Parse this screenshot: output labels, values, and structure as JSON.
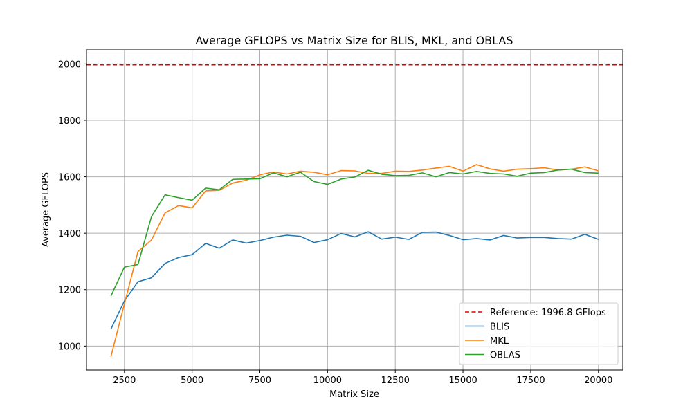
{
  "chart_data": {
    "type": "line",
    "title": "Average GFLOPS vs Matrix Size for BLIS, MKL, and OBLAS",
    "xlabel": "Matrix Size",
    "ylabel": "Average GFLOPS",
    "xlim": [
      1100,
      20900
    ],
    "ylim": [
      915,
      2050
    ],
    "xticks": [
      2500,
      5000,
      7500,
      10000,
      12500,
      15000,
      17500,
      20000
    ],
    "yticks": [
      1000,
      1200,
      1400,
      1600,
      1800,
      2000
    ],
    "grid": true,
    "legend_position": "lower-right",
    "reference": {
      "name": "Reference: 1996.8 GFlops",
      "value": 1996.8,
      "color": "#e00000",
      "style": "dashed"
    },
    "x": [
      2000,
      2500,
      3000,
      3500,
      4000,
      4500,
      5000,
      5500,
      6000,
      6500,
      7000,
      7500,
      8000,
      8500,
      9000,
      9500,
      10000,
      10500,
      11000,
      11500,
      12000,
      12500,
      13000,
      13500,
      14000,
      14500,
      15000,
      15500,
      16000,
      16500,
      17000,
      17500,
      18000,
      18500,
      19000,
      19500,
      20000
    ],
    "series": [
      {
        "name": "BLIS",
        "color": "#1f77b4",
        "values": [
          1060,
          1160,
          1228,
          1242,
          1293,
          1314,
          1324,
          1364,
          1347,
          1376,
          1365,
          1374,
          1386,
          1393,
          1389,
          1367,
          1377,
          1399,
          1387,
          1405,
          1379,
          1386,
          1378,
          1403,
          1404,
          1392,
          1377,
          1381,
          1376,
          1392,
          1383,
          1385,
          1385,
          1381,
          1379,
          1396,
          1378
        ]
      },
      {
        "name": "MKL",
        "color": "#ff7f0e",
        "values": [
          962,
          1150,
          1335,
          1376,
          1472,
          1498,
          1490,
          1550,
          1552,
          1578,
          1588,
          1607,
          1617,
          1610,
          1620,
          1616,
          1607,
          1622,
          1621,
          1612,
          1612,
          1620,
          1619,
          1624,
          1631,
          1637,
          1620,
          1643,
          1628,
          1620,
          1627,
          1629,
          1632,
          1624,
          1627,
          1635,
          1621
        ]
      },
      {
        "name": "OBLAS",
        "color": "#2ca02c",
        "values": [
          1177,
          1280,
          1289,
          1459,
          1536,
          1526,
          1517,
          1560,
          1554,
          1591,
          1592,
          1593,
          1614,
          1600,
          1616,
          1583,
          1573,
          1592,
          1599,
          1623,
          1609,
          1604,
          1605,
          1614,
          1600,
          1615,
          1610,
          1619,
          1612,
          1610,
          1602,
          1613,
          1615,
          1624,
          1627,
          1615,
          1613
        ]
      }
    ]
  }
}
